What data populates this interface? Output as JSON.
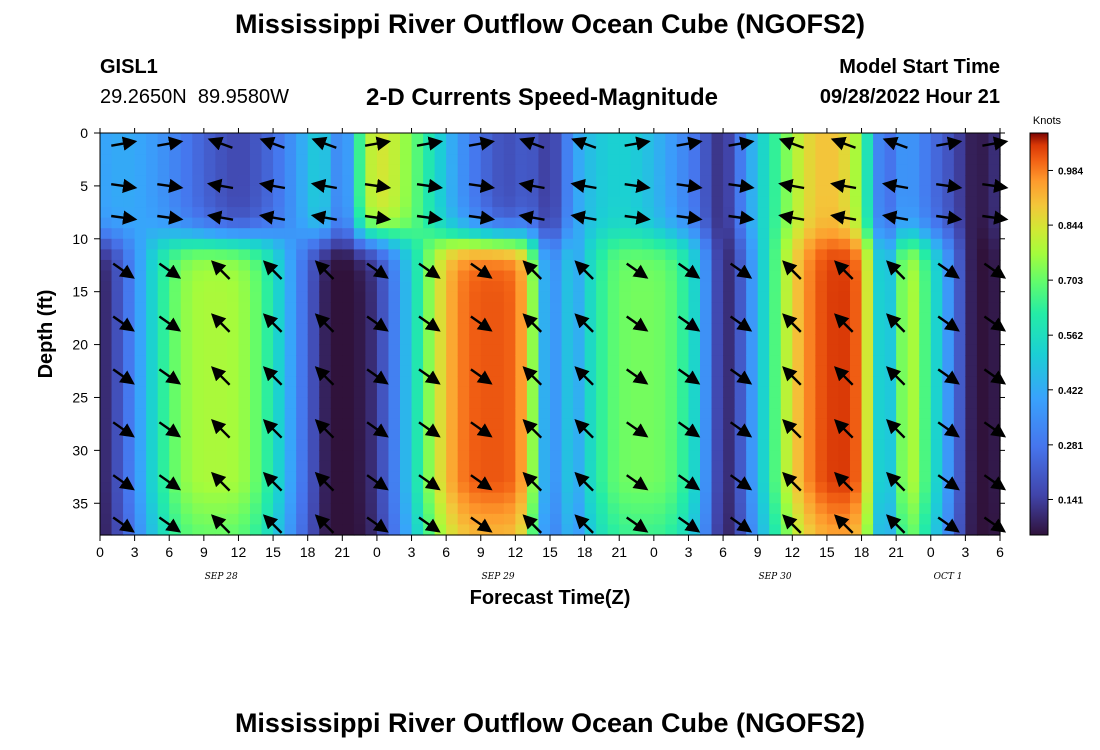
{
  "header": {
    "title": "Mississippi River Outflow Ocean Cube (NGOFS2)",
    "title_bottom": "Mississippi River Outflow Ocean Cube (NGOFS2)",
    "station": "GISL1",
    "coords": "29.2650N  89.9580W",
    "subtitle": "2-D Currents Speed-Magnitude",
    "model_label": "Model Start Time",
    "model_time": "09/28/2022 Hour 21"
  },
  "chart_data": {
    "type": "heatmap",
    "title": "2-D Currents Speed-Magnitude",
    "xlabel": "Forecast Time(Z)",
    "ylabel": "Depth (ft)",
    "x_unit": "hours since 09/28/2022 00Z",
    "xlim": [
      0,
      78
    ],
    "ylim": [
      0,
      38
    ],
    "y_inverted": true,
    "x_ticks": [
      0,
      3,
      6,
      9,
      12,
      15,
      18,
      21,
      24,
      27,
      30,
      33,
      36,
      39,
      42,
      45,
      48,
      51,
      54,
      57,
      60,
      63,
      66,
      69,
      72,
      75,
      78
    ],
    "x_tick_labels": [
      "0",
      "3",
      "6",
      "9",
      "12",
      "15",
      "18",
      "21",
      "0",
      "3",
      "6",
      "9",
      "12",
      "15",
      "18",
      "21",
      "0",
      "3",
      "6",
      "9",
      "12",
      "15",
      "18",
      "21",
      "0",
      "3",
      "6"
    ],
    "y_ticks": [
      0,
      5,
      10,
      15,
      20,
      25,
      30,
      35
    ],
    "y_tick_labels": [
      "0",
      "5",
      "10",
      "15",
      "20",
      "25",
      "30",
      "35"
    ],
    "date_labels": [
      {
        "label": "SEP 28",
        "x": 10.5
      },
      {
        "label": "SEP 29",
        "x": 34.5
      },
      {
        "label": "SEP 30",
        "x": 58.5
      },
      {
        "label": "OCT 1",
        "x": 73.5
      }
    ],
    "colorbar": {
      "title": "Knots",
      "min": 0.05,
      "max": 1.08,
      "ticks": [
        0.141,
        0.281,
        0.422,
        0.562,
        0.703,
        0.844,
        0.984
      ],
      "tick_labels": [
        "0.141",
        "0.281",
        "0.422",
        "0.562",
        "0.703",
        "0.844",
        "0.984"
      ]
    },
    "speed_field": {
      "description": "Speed in knots (analytic approximation of the figure)",
      "peak_times_lower": [
        10,
        34,
        47,
        65
      ],
      "peak_amplitudes_lower": [
        0.78,
        1.02,
        0.72,
        1.05
      ],
      "peak_halfwidths_lower": [
        7.5,
        8.0,
        7.0,
        8.5
      ],
      "peak_times_upper": [
        2,
        24,
        45,
        63
      ],
      "peak_amplitudes_upper": [
        0.3,
        0.72,
        0.4,
        0.78
      ],
      "slack_times": [
        21,
        39,
        54,
        68,
        76
      ],
      "background": 0.08
    },
    "vectors": {
      "times": [
        2,
        6,
        10.5,
        15,
        19.5,
        24,
        28.5,
        33,
        37.5,
        42,
        46.5,
        51,
        55.5,
        60,
        64.5,
        69,
        73.5,
        77.5
      ],
      "depths": [
        1,
        5,
        8,
        13,
        18,
        23,
        28,
        33,
        37
      ]
    }
  }
}
